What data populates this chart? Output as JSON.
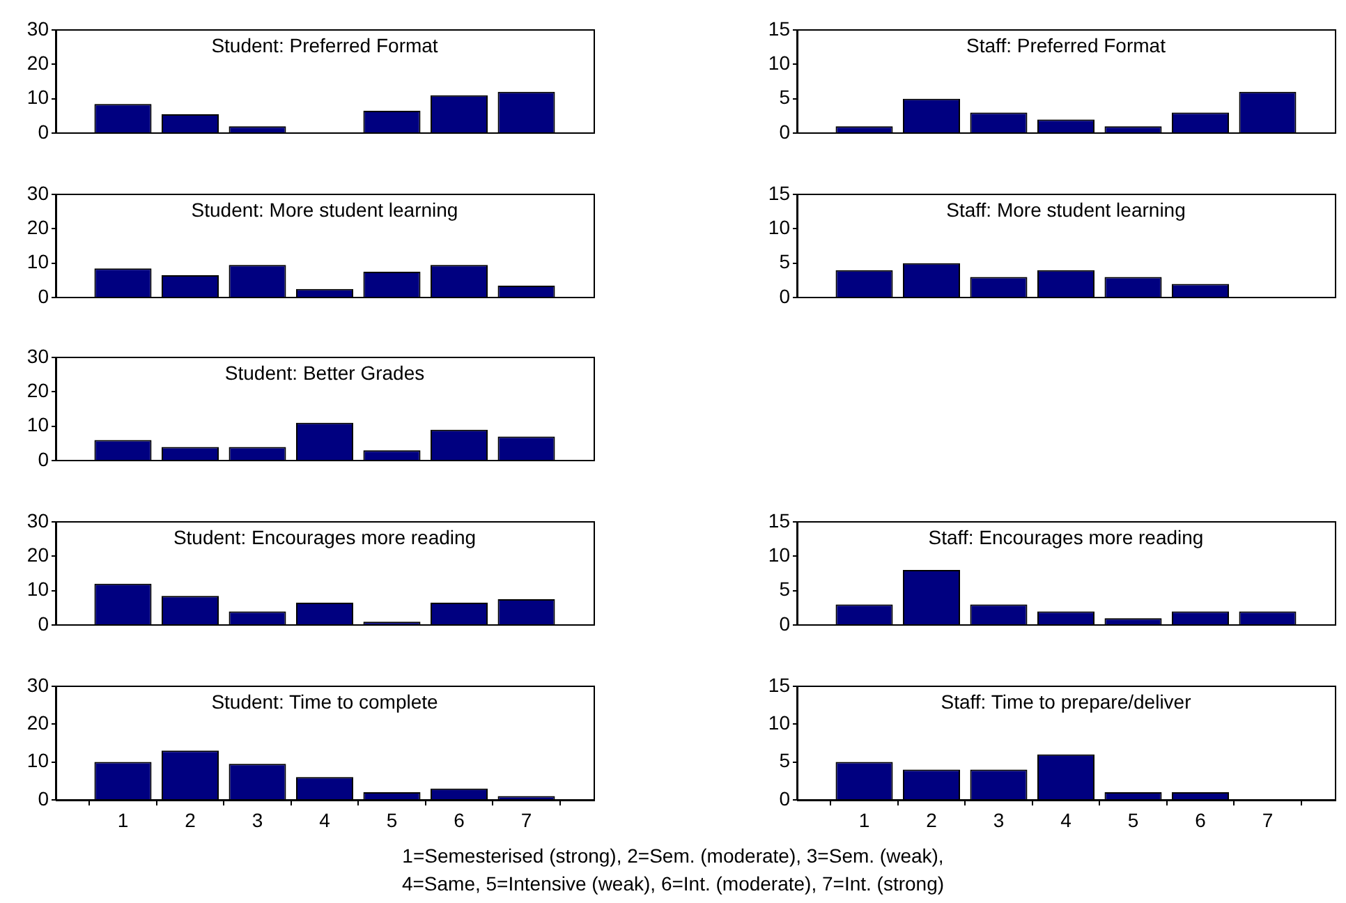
{
  "chart_data": [
    {
      "type": "bar",
      "title": "Student: Preferred Format",
      "categories": [
        "1",
        "2",
        "3",
        "4",
        "5",
        "6",
        "7"
      ],
      "values": [
        8.5,
        5.5,
        2,
        0,
        6.5,
        11,
        12
      ],
      "color": "#000080",
      "ylim": [
        0,
        30
      ],
      "yticks": [
        0,
        10,
        20,
        30
      ],
      "grid": false,
      "legend": false,
      "tick_labels": "y"
    },
    {
      "type": "bar",
      "title": "Staff: Preferred Format",
      "categories": [
        "1",
        "2",
        "3",
        "4",
        "5",
        "6",
        "7"
      ],
      "values": [
        1,
        5,
        3,
        2,
        1,
        3,
        6
      ],
      "color": "#000080",
      "ylim": [
        0,
        15
      ],
      "yticks": [
        0,
        5,
        10,
        15
      ],
      "grid": false,
      "legend": false,
      "tick_labels": "y"
    },
    {
      "type": "bar",
      "title": "Student: More student learning",
      "categories": [
        "1",
        "2",
        "3",
        "4",
        "5",
        "6",
        "7"
      ],
      "values": [
        8.5,
        6.5,
        9.5,
        2.5,
        7.5,
        9.5,
        3.5
      ],
      "color": "#000080",
      "ylim": [
        0,
        30
      ],
      "yticks": [
        0,
        10,
        20,
        30
      ],
      "grid": false,
      "legend": false,
      "tick_labels": "y"
    },
    {
      "type": "bar",
      "title": "Staff: More student learning",
      "categories": [
        "1",
        "2",
        "3",
        "4",
        "5",
        "6",
        "7"
      ],
      "values": [
        4,
        5,
        3,
        4,
        3,
        2,
        0
      ],
      "color": "#000080",
      "ylim": [
        0,
        15
      ],
      "yticks": [
        0,
        5,
        10,
        15
      ],
      "grid": false,
      "legend": false,
      "tick_labels": "y"
    },
    {
      "type": "bar",
      "title": "Student: Better Grades",
      "categories": [
        "1",
        "2",
        "3",
        "4",
        "5",
        "6",
        "7"
      ],
      "values": [
        6,
        4,
        4,
        11,
        3,
        9,
        7
      ],
      "color": "#000080",
      "ylim": [
        0,
        30
      ],
      "yticks": [
        0,
        10,
        20,
        30
      ],
      "grid": false,
      "legend": false,
      "tick_labels": "y"
    },
    {
      "type": "bar",
      "title": "Student: Encourages more reading",
      "categories": [
        "1",
        "2",
        "3",
        "4",
        "5",
        "6",
        "7"
      ],
      "values": [
        12,
        8.5,
        4,
        6.5,
        1,
        6.5,
        7.5
      ],
      "color": "#000080",
      "ylim": [
        0,
        30
      ],
      "yticks": [
        0,
        10,
        20,
        30
      ],
      "grid": false,
      "legend": false,
      "tick_labels": "y"
    },
    {
      "type": "bar",
      "title": "Staff: Encourages more reading",
      "categories": [
        "1",
        "2",
        "3",
        "4",
        "5",
        "6",
        "7"
      ],
      "values": [
        3,
        8,
        3,
        2,
        1,
        2,
        2
      ],
      "color": "#000080",
      "ylim": [
        0,
        15
      ],
      "yticks": [
        0,
        5,
        10,
        15
      ],
      "grid": false,
      "legend": false,
      "tick_labels": "y"
    },
    {
      "type": "bar",
      "title": "Student: Time to complete",
      "categories": [
        "1",
        "2",
        "3",
        "4",
        "5",
        "6",
        "7"
      ],
      "values": [
        10,
        13,
        9.5,
        6,
        2,
        3,
        1
      ],
      "color": "#000080",
      "ylim": [
        0,
        30
      ],
      "yticks": [
        0,
        10,
        20,
        30
      ],
      "grid": false,
      "legend": false
    },
    {
      "type": "bar",
      "title": "Staff: Time to prepare/deliver",
      "categories": [
        "1",
        "2",
        "3",
        "4",
        "5",
        "6",
        "7"
      ],
      "values": [
        5,
        4,
        4,
        6,
        1,
        1,
        0
      ],
      "color": "#000080",
      "ylim": [
        0,
        15
      ],
      "yticks": [
        0,
        5,
        10,
        15
      ],
      "grid": false,
      "legend": false,
      "annotations": [
        "1=Semesterised (strong), 2=Sem. (moderate), 3=Sem. (weak),",
        "4=Same, 5=Intensive (weak), 6=Int. (moderate), 7=Int. (strong)"
      ]
    }
  ]
}
